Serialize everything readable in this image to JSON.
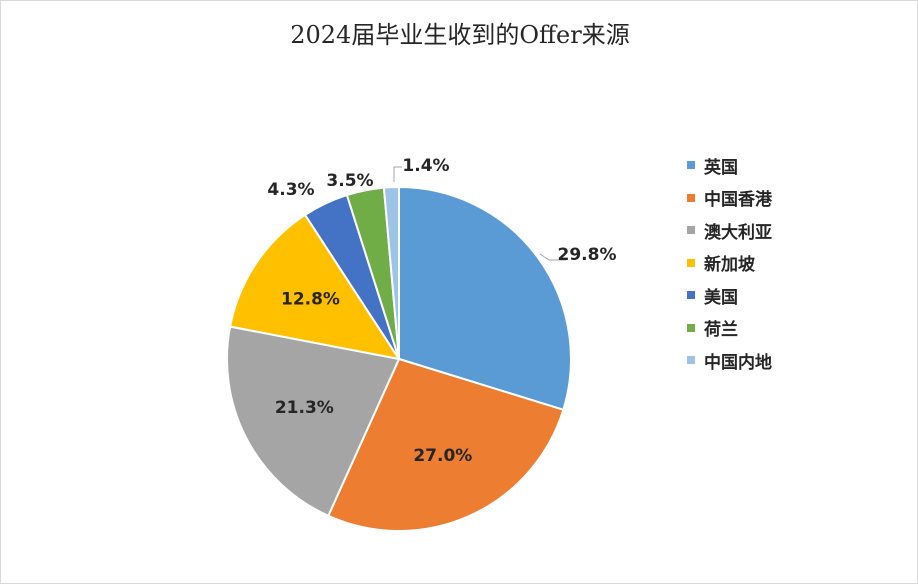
{
  "chart_data": {
    "type": "pie",
    "title": "2024届毕业生收到的Offer来源",
    "categories": [
      "英国",
      "中国香港",
      "澳大利亚",
      "新加坡",
      "美国",
      "荷兰",
      "中国内地"
    ],
    "values": [
      29.8,
      27.0,
      21.3,
      12.8,
      4.3,
      3.5,
      1.4
    ],
    "value_labels": [
      "29.8%",
      "27.0%",
      "21.3%",
      "12.8%",
      "4.3%",
      "3.5%",
      "1.4%"
    ],
    "colors": [
      "#5B9BD5",
      "#ED7D31",
      "#A5A5A5",
      "#FFC000",
      "#4472C4",
      "#70AD47",
      "#9DC3E6"
    ],
    "legend_position": "right",
    "start_angle": "12 o'clock",
    "direction": "clockwise"
  }
}
